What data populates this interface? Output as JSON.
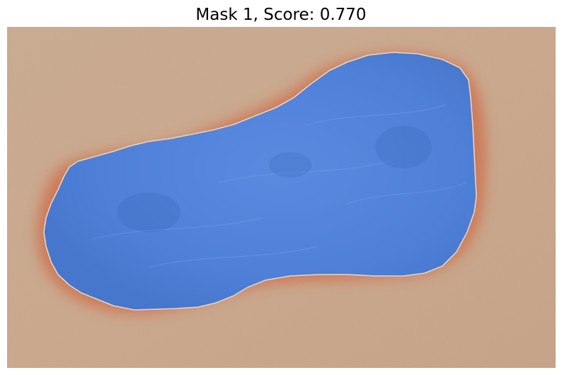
{
  "figure": {
    "title": "Mask 1, Score: 0.770",
    "colors": {
      "skin": "#c9a88d",
      "erythema": "#cf6a45",
      "mask_fill": "#4f80d8",
      "mask_outline": "#e9d3c4"
    }
  }
}
